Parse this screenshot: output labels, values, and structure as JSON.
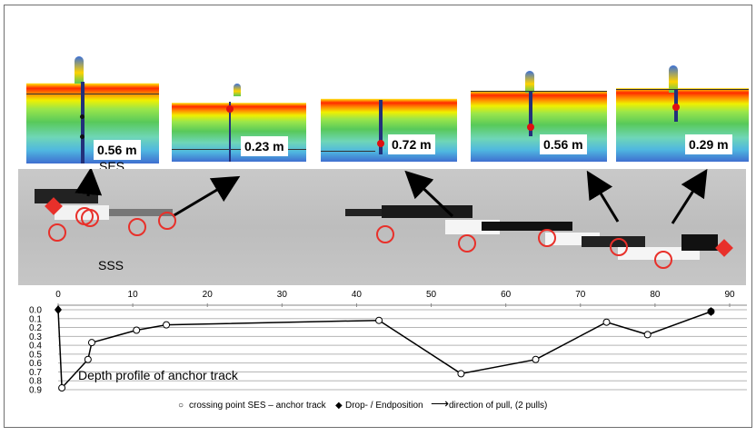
{
  "echograms": [
    {
      "depth_label": "0.56 m"
    },
    {
      "depth_label": "0.23 m"
    },
    {
      "depth_label": "0.72 m"
    },
    {
      "depth_label": "0.56 m"
    },
    {
      "depth_label": "0.29 m"
    }
  ],
  "labels": {
    "ses": "SES",
    "sss": "SSS"
  },
  "colors": {
    "circle": "#e8302a",
    "marker": "#e8302a",
    "line": "#000000"
  },
  "chart_data": {
    "type": "line",
    "title": "Depth profile of anchor track",
    "x_ticks": [
      0,
      10,
      20,
      30,
      40,
      50,
      60,
      70,
      80,
      90
    ],
    "y_ticks": [
      "0.0",
      "0.1",
      "0.2",
      "0.3",
      "0.4",
      "0.5",
      "0.6",
      "0.7",
      "0.8",
      "0.9"
    ],
    "xlim": [
      0,
      90
    ],
    "ylim": [
      0,
      0.9
    ],
    "y_inverted": true,
    "grid": true,
    "series": [
      {
        "name": "crossing point SES – anchor track",
        "points": [
          [
            0.5,
            0.88
          ],
          [
            4,
            0.56
          ],
          [
            4.5,
            0.37
          ],
          [
            10.5,
            0.23
          ],
          [
            14.5,
            0.17
          ],
          [
            43,
            0.12
          ],
          [
            54,
            0.72
          ],
          [
            64,
            0.56
          ],
          [
            73.5,
            0.14
          ],
          [
            79,
            0.28
          ],
          [
            87.5,
            0.02
          ]
        ]
      }
    ],
    "markers": {
      "name": "Drop- / Endposition",
      "points": [
        [
          0,
          0.0
        ],
        [
          87.5,
          0.02
        ]
      ]
    },
    "legend": [
      {
        "symbol": "○",
        "label": "crossing point SES – anchor track"
      },
      {
        "symbol": "◆",
        "label": "Drop- / Endposition"
      },
      {
        "symbol": "⟶",
        "label": "direction of pull, (2 pulls)"
      }
    ]
  }
}
